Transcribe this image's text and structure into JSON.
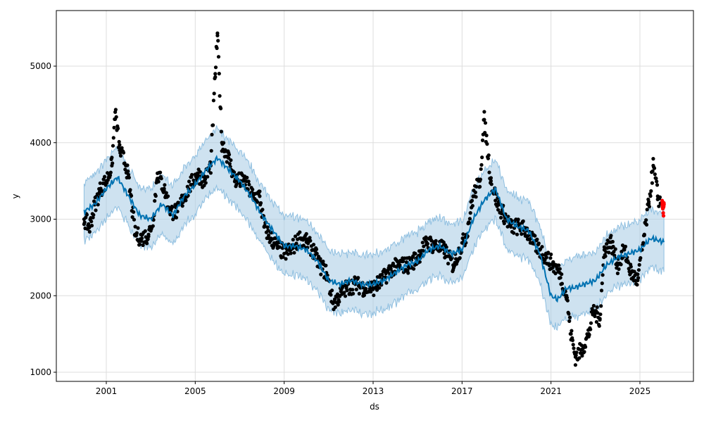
{
  "chart_data": {
    "type": "scatter",
    "title": "",
    "xlabel": "ds",
    "ylabel": "y",
    "xlim": [
      1999.8,
      2026.8
    ],
    "ylim": [
      880,
      5720
    ],
    "grid": true,
    "x_ticks": [
      2001,
      2005,
      2009,
      2013,
      2017,
      2021,
      2025
    ],
    "y_ticks": [
      1000,
      2000,
      3000,
      4000,
      5000
    ],
    "colors": {
      "actual": "#000000",
      "forecast_points": "#ff0000",
      "yhat": "#0072b2",
      "interval": "#a6cbe3"
    },
    "interval_halfwidth": 380,
    "actual": [
      [
        2000.0,
        3000
      ],
      [
        2000.25,
        2900
      ],
      [
        2000.5,
        3200
      ],
      [
        2000.75,
        3400
      ],
      [
        2001.0,
        3500
      ],
      [
        2001.25,
        3700
      ],
      [
        2001.4,
        4400
      ],
      [
        2001.6,
        3900
      ],
      [
        2001.9,
        3700
      ],
      [
        2002.1,
        3300
      ],
      [
        2002.3,
        2800
      ],
      [
        2002.6,
        2750
      ],
      [
        2002.9,
        2800
      ],
      [
        2003.1,
        3000
      ],
      [
        2003.3,
        3600
      ],
      [
        2003.6,
        3400
      ],
      [
        2003.9,
        3100
      ],
      [
        2004.2,
        3100
      ],
      [
        2004.5,
        3300
      ],
      [
        2004.8,
        3450
      ],
      [
        2005.1,
        3600
      ],
      [
        2005.4,
        3500
      ],
      [
        2005.7,
        3700
      ],
      [
        2005.9,
        4900
      ],
      [
        2006.0,
        5400
      ],
      [
        2006.2,
        4000
      ],
      [
        2006.5,
        3800
      ],
      [
        2006.8,
        3500
      ],
      [
        2007.2,
        3500
      ],
      [
        2007.6,
        3300
      ],
      [
        2007.9,
        3300
      ],
      [
        2008.1,
        2900
      ],
      [
        2008.4,
        2750
      ],
      [
        2008.7,
        2650
      ],
      [
        2009.0,
        2550
      ],
      [
        2009.3,
        2600
      ],
      [
        2009.7,
        2750
      ],
      [
        2010.0,
        2700
      ],
      [
        2010.3,
        2600
      ],
      [
        2010.6,
        2400
      ],
      [
        2010.9,
        2300
      ],
      [
        2011.2,
        1900
      ],
      [
        2011.5,
        2000
      ],
      [
        2011.8,
        2100
      ],
      [
        2012.2,
        2150
      ],
      [
        2012.6,
        2100
      ],
      [
        2013.0,
        2100
      ],
      [
        2013.4,
        2200
      ],
      [
        2013.8,
        2350
      ],
      [
        2014.2,
        2400
      ],
      [
        2014.6,
        2400
      ],
      [
        2015.0,
        2500
      ],
      [
        2015.4,
        2700
      ],
      [
        2015.8,
        2650
      ],
      [
        2016.2,
        2600
      ],
      [
        2016.6,
        2400
      ],
      [
        2016.9,
        2600
      ],
      [
        2017.2,
        2800
      ],
      [
        2017.5,
        3300
      ],
      [
        2017.8,
        3500
      ],
      [
        2018.0,
        4300
      ],
      [
        2018.3,
        3500
      ],
      [
        2018.6,
        3200
      ],
      [
        2018.9,
        3050
      ],
      [
        2019.2,
        2900
      ],
      [
        2019.6,
        2900
      ],
      [
        2019.9,
        2850
      ],
      [
        2020.2,
        2700
      ],
      [
        2020.5,
        2600
      ],
      [
        2020.8,
        2500
      ],
      [
        2021.1,
        2400
      ],
      [
        2021.4,
        2300
      ],
      [
        2021.7,
        2000
      ],
      [
        2021.9,
        1500
      ],
      [
        2022.1,
        1200
      ],
      [
        2022.4,
        1300
      ],
      [
        2022.7,
        1500
      ],
      [
        2022.9,
        1800
      ],
      [
        2023.2,
        1700
      ],
      [
        2023.4,
        2600
      ],
      [
        2023.7,
        2700
      ],
      [
        2024.0,
        2400
      ],
      [
        2024.3,
        2600
      ],
      [
        2024.6,
        2300
      ],
      [
        2024.9,
        2200
      ],
      [
        2025.2,
        2800
      ],
      [
        2025.4,
        3200
      ],
      [
        2025.6,
        3700
      ],
      [
        2025.8,
        3300
      ],
      [
        2025.95,
        3200
      ]
    ],
    "forecast_points": [
      [
        2026.0,
        3250
      ],
      [
        2026.03,
        3150
      ],
      [
        2026.06,
        3100
      ],
      [
        2026.09,
        3200
      ]
    ],
    "yhat": [
      [
        2000,
        3100
      ],
      [
        2000.5,
        3200
      ],
      [
        2001,
        3400
      ],
      [
        2001.5,
        3550
      ],
      [
        2002,
        3300
      ],
      [
        2002.5,
        3050
      ],
      [
        2003,
        3000
      ],
      [
        2003.5,
        3200
      ],
      [
        2004,
        3050
      ],
      [
        2004.5,
        3300
      ],
      [
        2005,
        3450
      ],
      [
        2005.5,
        3650
      ],
      [
        2006,
        3800
      ],
      [
        2006.5,
        3650
      ],
      [
        2007,
        3500
      ],
      [
        2007.5,
        3300
      ],
      [
        2008,
        3050
      ],
      [
        2008.5,
        2850
      ],
      [
        2009,
        2650
      ],
      [
        2009.5,
        2650
      ],
      [
        2010,
        2600
      ],
      [
        2010.5,
        2450
      ],
      [
        2011,
        2200
      ],
      [
        2011.5,
        2150
      ],
      [
        2012,
        2200
      ],
      [
        2012.5,
        2150
      ],
      [
        2013,
        2150
      ],
      [
        2013.5,
        2200
      ],
      [
        2014,
        2300
      ],
      [
        2014.5,
        2400
      ],
      [
        2015,
        2450
      ],
      [
        2015.5,
        2600
      ],
      [
        2016,
        2650
      ],
      [
        2016.5,
        2550
      ],
      [
        2017,
        2600
      ],
      [
        2017.5,
        3000
      ],
      [
        2018,
        3250
      ],
      [
        2018.5,
        3400
      ],
      [
        2019,
        3000
      ],
      [
        2019.5,
        2900
      ],
      [
        2020,
        2850
      ],
      [
        2020.5,
        2550
      ],
      [
        2021,
        2000
      ],
      [
        2021.3,
        1950
      ],
      [
        2021.7,
        2100
      ],
      [
        2022,
        2100
      ],
      [
        2022.5,
        2150
      ],
      [
        2023,
        2200
      ],
      [
        2023.5,
        2400
      ],
      [
        2024,
        2500
      ],
      [
        2024.5,
        2550
      ],
      [
        2025,
        2600
      ],
      [
        2025.5,
        2750
      ],
      [
        2026.1,
        2700
      ]
    ]
  }
}
